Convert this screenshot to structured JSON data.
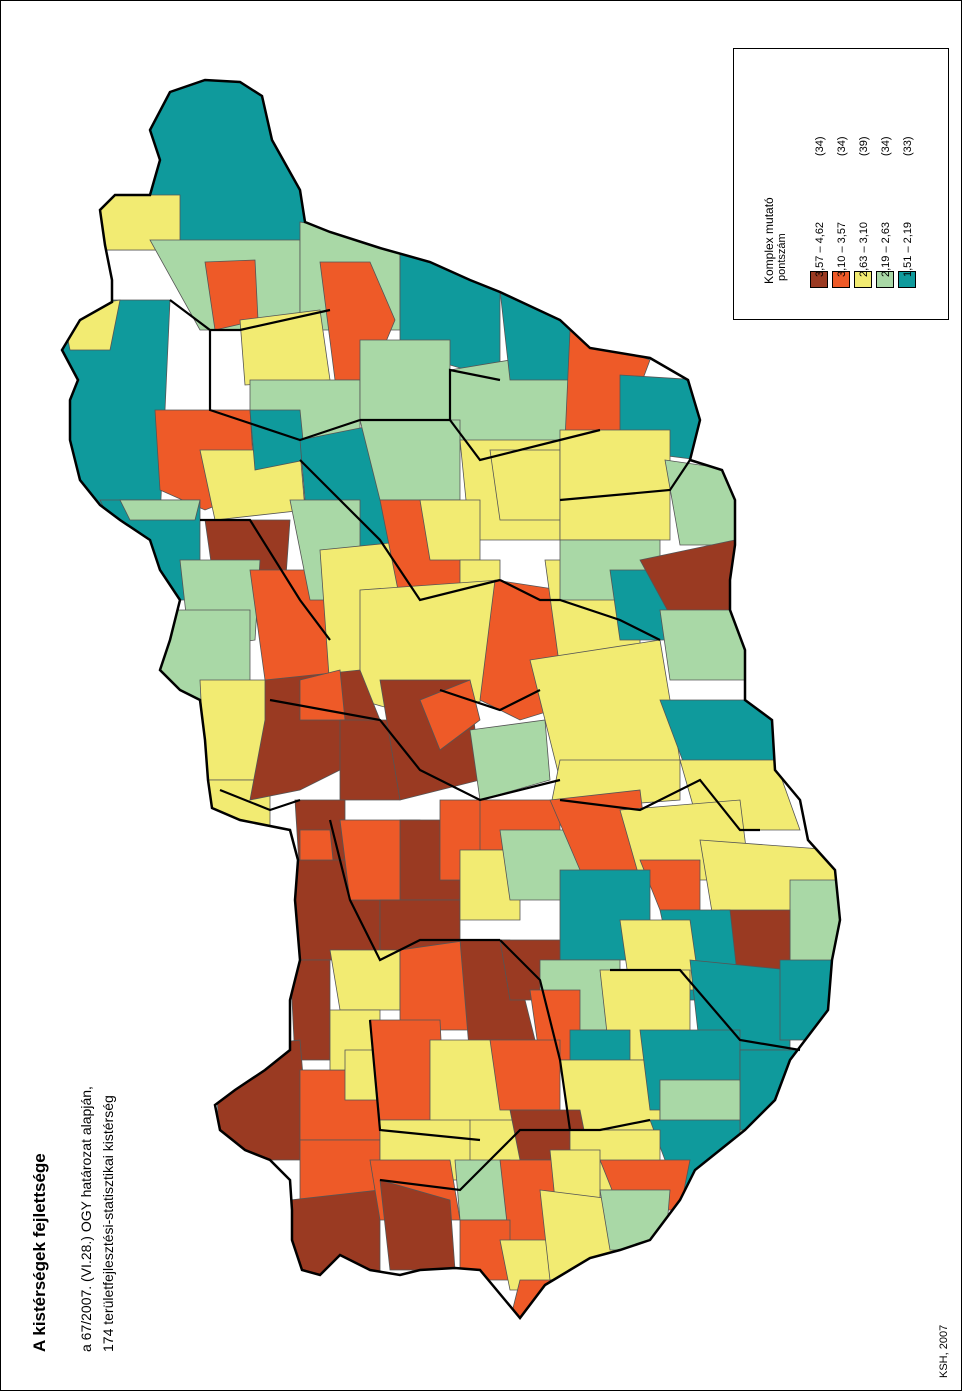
{
  "title": "A kistérségek fejlettsége",
  "subtitle_line1": "a 67/2007. (VI.28.) OGY határozat alapján,",
  "subtitle_line2": "174 területfejlesztési-statisztikai kistérség",
  "source": "KSH, 2007",
  "legend": {
    "title": "Komplex mutató",
    "subtitle": "pontszám",
    "classes": [
      {
        "range": "3,57  –  4,62",
        "count": "(34)",
        "color": "#9a3a22"
      },
      {
        "range": "3,10  –  3,57",
        "count": "(34)",
        "color": "#ee5a28"
      },
      {
        "range": "2,63  –  3,10",
        "count": "(39)",
        "color": "#f2eb72"
      },
      {
        "range": "2,19  –  2,63",
        "count": "(34)",
        "color": "#a9d8a6"
      },
      {
        "range": "1,51  –  2,19",
        "count": "(33)",
        "color": "#0f9a9c"
      }
    ]
  }
}
